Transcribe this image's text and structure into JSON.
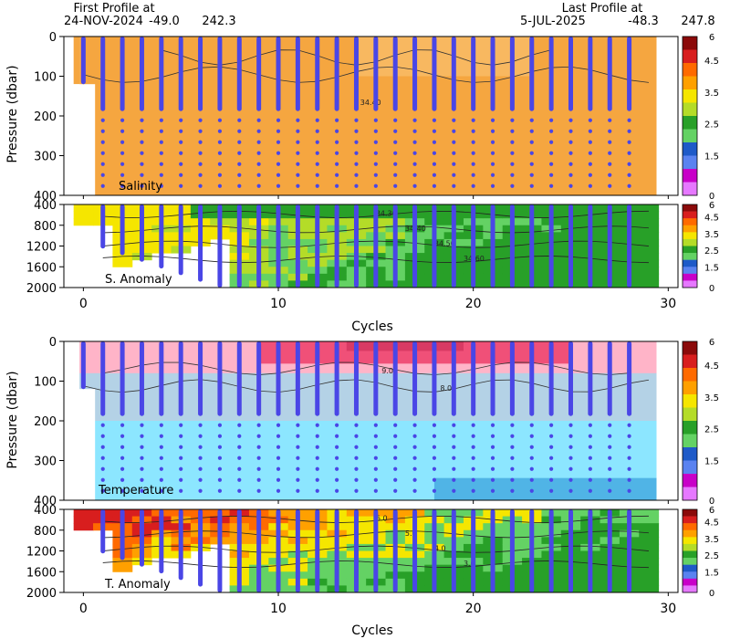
{
  "header": {
    "first_label": "First Profile at",
    "first_date": "24-NOV-2024",
    "first_lat": "-49.0",
    "first_lon": "242.3",
    "last_label": "Last Profile at",
    "last_date": "5-JUL-2025",
    "last_lat": "-48.3",
    "last_lon": "247.8"
  },
  "chart_data": {
    "type": "heatmap",
    "x_label": "Cycles",
    "y_label": "Pressure (dbar)",
    "x_ticks": [
      "0",
      "10",
      "20",
      "30"
    ],
    "x_range": [
      -1,
      30.5
    ],
    "cycles": [
      0,
      1,
      2,
      3,
      4,
      5,
      6,
      7,
      8,
      9,
      10,
      11,
      12,
      13,
      14,
      15,
      16,
      17,
      18,
      19,
      20,
      21,
      22,
      23,
      24,
      25,
      26,
      27,
      28
    ],
    "colorbar_ticks": [
      "6",
      "4.5",
      "3.5",
      "2.5",
      "1.5",
      "0"
    ],
    "colorbar_colors": [
      "#8b0a0a",
      "#d81e1e",
      "#ff6a00",
      "#ffa000",
      "#f5e600",
      "#b4dc28",
      "#28a028",
      "#64d264",
      "#1e5ac8",
      "#5a82f0",
      "#c800c8",
      "#e678ff"
    ],
    "profile_marker_color": "#4a46e6",
    "panels": [
      {
        "label": "Salinity",
        "y_ticks": [
          "0",
          "100",
          "200",
          "300",
          "400"
        ],
        "y_range": [
          0,
          400
        ],
        "fill_color": "#f5a640",
        "contours": [
          "34.40",
          "34.30"
        ]
      },
      {
        "label": "S. Anomaly",
        "y_ticks": [
          "400",
          "800",
          "1200",
          "1600",
          "2000"
        ],
        "y_range": [
          400,
          2000
        ],
        "contours": [
          "34.30",
          "34.40",
          "34.50",
          "34.60"
        ]
      },
      {
        "label": "Temperature",
        "y_ticks": [
          "0",
          "100",
          "200",
          "300",
          "400"
        ],
        "y_range": [
          0,
          400
        ],
        "colors": {
          "warm": "#f05078",
          "mid": "#ffb4c8",
          "cool": "#b4d2e6",
          "cold": "#8ce6ff",
          "coldest": "#50b4e6"
        },
        "contours": [
          "9.0",
          "8.0"
        ]
      },
      {
        "label": "T. Anomaly",
        "y_ticks": [
          "400",
          "800",
          "1200",
          "1600",
          "2000"
        ],
        "y_range": [
          400,
          2000
        ],
        "contours": [
          "6.0",
          "5.0",
          "4.0",
          "3.0"
        ]
      }
    ]
  }
}
